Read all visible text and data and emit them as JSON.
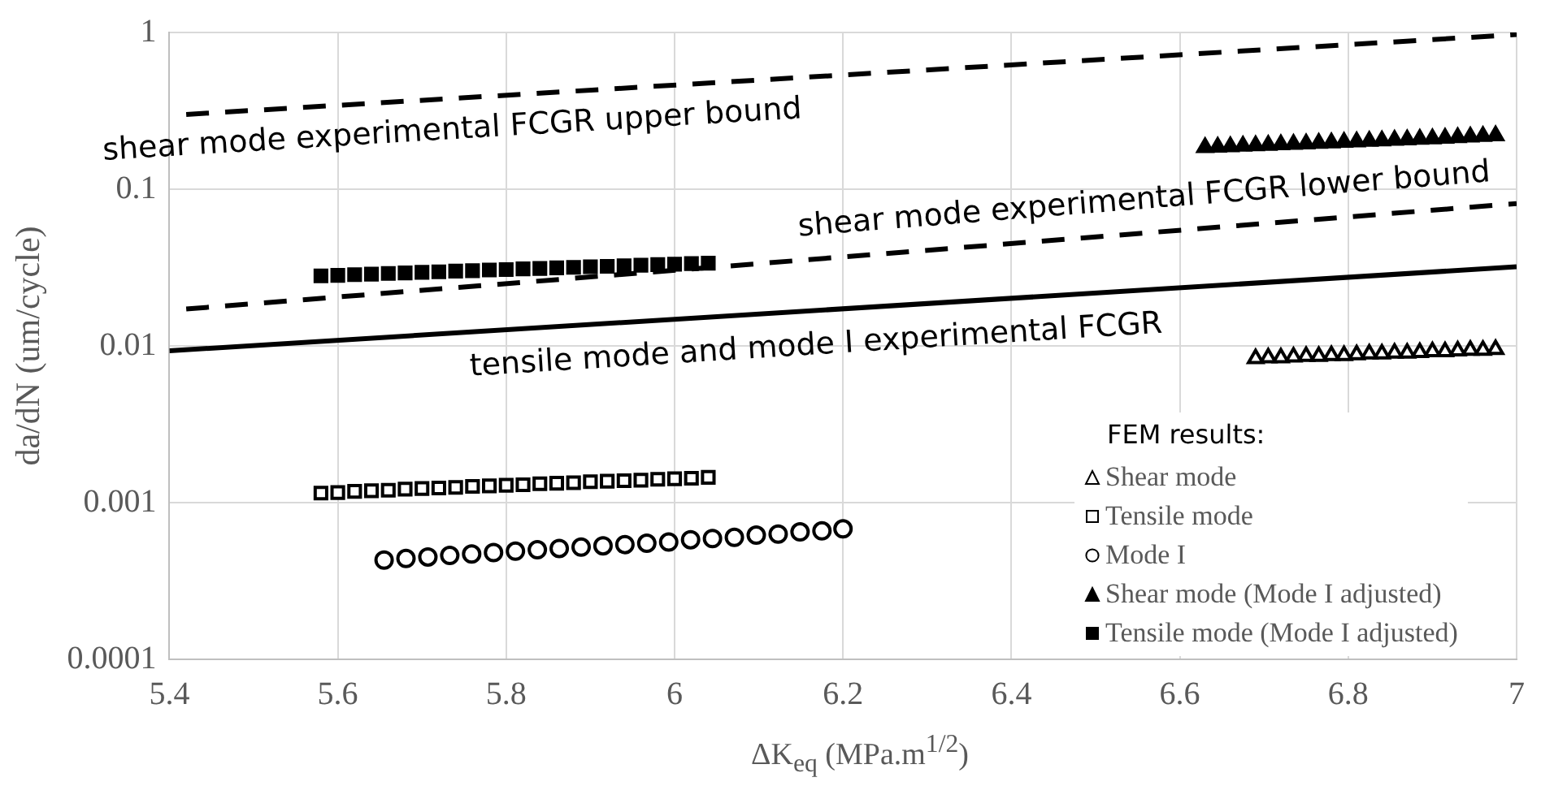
{
  "chart_data": {
    "type": "scatter",
    "ylabel": "da/dN (um/cycle)",
    "xlabel": "ΔK$_{eq}$ (MPa.m$^{1/2}$)",
    "legend_title": "FEM results:",
    "legend": "bottom right",
    "grid": true,
    "log": "y",
    "xlim": [
      5.4,
      7
    ],
    "xticks": [
      5.4,
      5.6,
      5.8,
      6,
      6.2,
      6.4,
      6.6,
      6.8,
      7
    ],
    "ylim": [
      0.0001,
      1
    ],
    "yticks": [
      0.0001,
      0.001,
      0.01,
      0.1,
      1
    ],
    "series": [
      {
        "type": "line",
        "name": "shear mode experimental FCGR upper bound",
        "line_style": "dashed",
        "color": "#000000",
        "x": [
          5.42,
          7
        ],
        "values": [
          0.3,
          0.97
        ]
      },
      {
        "type": "line",
        "name": "shear mode experimental FCGR lower bound",
        "line_style": "dashed",
        "color": "#000000",
        "x": [
          5.42,
          7
        ],
        "values": [
          0.0172,
          0.081
        ]
      },
      {
        "type": "line",
        "name": "tensile mode and mode I experimental FCGR",
        "line_style": "solid",
        "color": "#000000",
        "x": [
          5.4,
          7
        ],
        "values": [
          0.0093,
          0.032
        ]
      },
      {
        "name": "Shear mode",
        "marker": "triangle",
        "color": "#ffffff",
        "x": [
          6.69,
          6.705,
          6.72,
          6.735,
          6.75,
          6.765,
          6.78,
          6.795,
          6.81,
          6.825,
          6.84,
          6.855,
          6.87,
          6.885,
          6.9,
          6.915,
          6.93,
          6.945,
          6.96,
          6.975
        ],
        "values": [
          0.0083,
          0.0084,
          0.0084,
          0.0085,
          0.0086,
          0.0086,
          0.0087,
          0.0087,
          0.0088,
          0.0089,
          0.0089,
          0.009,
          0.009,
          0.0091,
          0.0092,
          0.0092,
          0.0093,
          0.0094,
          0.0094,
          0.0095
        ]
      },
      {
        "name": "Tensile mode",
        "marker": "square",
        "color": "#ffffff",
        "x": [
          5.58,
          5.6,
          5.62,
          5.64,
          5.66,
          5.68,
          5.7,
          5.72,
          5.74,
          5.76,
          5.78,
          5.8,
          5.82,
          5.84,
          5.86,
          5.88,
          5.9,
          5.92,
          5.94,
          5.96,
          5.98,
          6,
          6.02,
          6.04
        ],
        "values": [
          0.00115,
          0.00116,
          0.00118,
          0.00119,
          0.0012,
          0.00122,
          0.00123,
          0.00124,
          0.00125,
          0.00127,
          0.00128,
          0.00129,
          0.0013,
          0.00132,
          0.00133,
          0.00134,
          0.00136,
          0.00137,
          0.00138,
          0.00139,
          0.00141,
          0.00142,
          0.00143,
          0.00145
        ]
      },
      {
        "name": "Mode I",
        "marker": "circle",
        "color": "#ffffff",
        "x": [
          5.655,
          5.681,
          5.707,
          5.733,
          5.759,
          5.785,
          5.811,
          5.837,
          5.863,
          5.889,
          5.915,
          5.941,
          5.967,
          5.993,
          6.019,
          6.045,
          6.071,
          6.097,
          6.123,
          6.149,
          6.175,
          6.2
        ],
        "values": [
          0.00043,
          0.00044,
          0.00045,
          0.00046,
          0.00047,
          0.00048,
          0.00049,
          0.0005,
          0.00051,
          0.00052,
          0.00053,
          0.00054,
          0.00055,
          0.00056,
          0.00058,
          0.00059,
          0.0006,
          0.00062,
          0.00063,
          0.00065,
          0.00066,
          0.00068
        ]
      },
      {
        "name": "Shear mode (Mode I adjusted)",
        "marker": "triangle",
        "color": "#000000",
        "x": [
          6.63,
          6.645,
          6.66,
          6.675,
          6.69,
          6.705,
          6.72,
          6.735,
          6.75,
          6.765,
          6.78,
          6.795,
          6.81,
          6.825,
          6.84,
          6.855,
          6.87,
          6.885,
          6.9,
          6.915,
          6.93,
          6.945,
          6.96,
          6.975
        ],
        "values": [
          0.185,
          0.186,
          0.187,
          0.189,
          0.19,
          0.191,
          0.193,
          0.194,
          0.195,
          0.197,
          0.198,
          0.2,
          0.201,
          0.203,
          0.204,
          0.206,
          0.207,
          0.209,
          0.21,
          0.212,
          0.214,
          0.216,
          0.218,
          0.22
        ]
      },
      {
        "name": "Tensile mode (Mode I adjusted)",
        "marker": "square",
        "color": "#000000",
        "x": [
          5.58,
          5.6,
          5.62,
          5.64,
          5.66,
          5.68,
          5.7,
          5.72,
          5.74,
          5.76,
          5.78,
          5.8,
          5.82,
          5.84,
          5.86,
          5.88,
          5.9,
          5.92,
          5.94,
          5.96,
          5.98,
          6,
          6.02,
          6.04
        ],
        "values": [
          0.028,
          0.0282,
          0.0285,
          0.0287,
          0.029,
          0.0292,
          0.0295,
          0.0297,
          0.03,
          0.0302,
          0.0305,
          0.0307,
          0.031,
          0.0312,
          0.0315,
          0.0317,
          0.032,
          0.0322,
          0.0325,
          0.0327,
          0.033,
          0.0332,
          0.0335,
          0.0337
        ]
      }
    ]
  }
}
